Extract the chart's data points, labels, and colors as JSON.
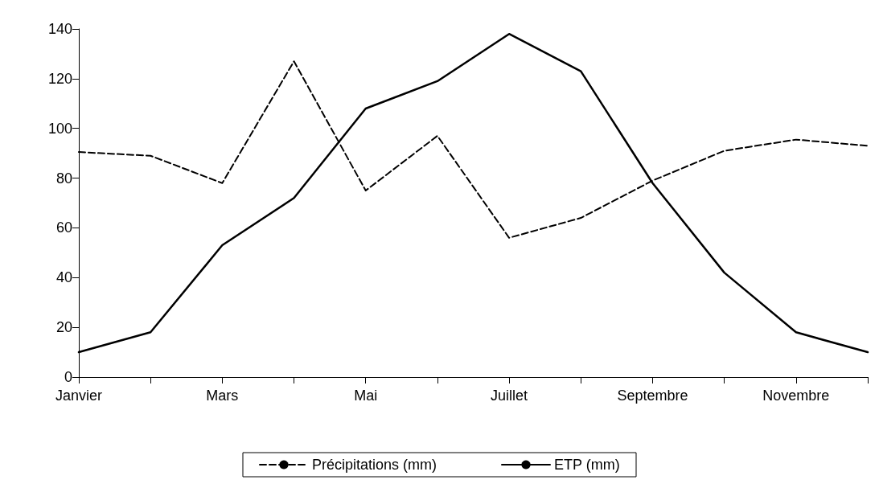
{
  "chart_data": {
    "type": "line",
    "categories": [
      "Janvier",
      null,
      "Mars",
      null,
      "Mai",
      null,
      "Juillet",
      null,
      "Septembre",
      null,
      "Novembre",
      null
    ],
    "series": [
      {
        "name": "Précipitations (mm)",
        "color": "#000000",
        "line_style": "dashed",
        "values": [
          90.5,
          89,
          78,
          127,
          75,
          97,
          56,
          64,
          79,
          91,
          95.5,
          93
        ]
      },
      {
        "name": "ETP (mm)",
        "color": "#000000",
        "line_style": "solid",
        "values": [
          10,
          18,
          53,
          72,
          108,
          119,
          138,
          123,
          78,
          42,
          18,
          10
        ]
      }
    ],
    "ylim": [
      0,
      140
    ],
    "yticks": [
      0,
      20,
      40,
      60,
      80,
      100,
      120,
      140
    ],
    "grid": false,
    "legend": "bottom",
    "marker": "none"
  }
}
